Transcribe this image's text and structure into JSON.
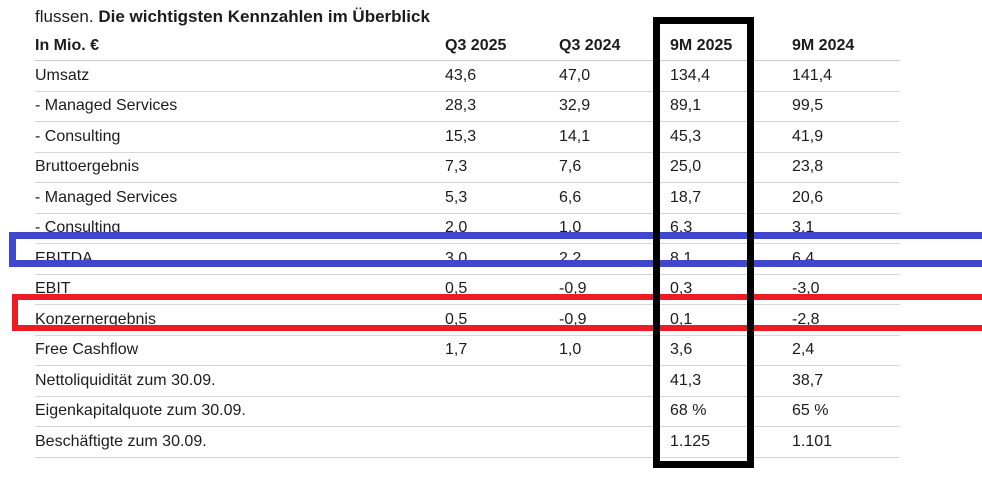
{
  "page": {
    "intro_text": "flussen.",
    "title": "Die wichtigsten Kennzahlen im Überblick"
  },
  "table": {
    "unit_label": "In Mio. €",
    "columns": [
      "Q3 2025",
      "Q3 2024",
      "9M 2025",
      "9M 2024"
    ],
    "rows": [
      {
        "label": "Umsatz",
        "values": [
          "43,6",
          "47,0",
          "134,4",
          "141,4"
        ],
        "highlight": ""
      },
      {
        "label": "- Managed Services",
        "values": [
          "28,3",
          "32,9",
          "89,1",
          "99,5"
        ],
        "highlight": ""
      },
      {
        "label": "- Consulting",
        "values": [
          "15,3",
          "14,1",
          "45,3",
          "41,9"
        ],
        "highlight": ""
      },
      {
        "label": "Bruttoergebnis",
        "values": [
          "7,3",
          "7,6",
          "25,0",
          "23,8"
        ],
        "highlight": ""
      },
      {
        "label": "- Managed Services",
        "values": [
          "5,3",
          "6,6",
          "18,7",
          "20,6"
        ],
        "highlight": ""
      },
      {
        "label": "- Consulting",
        "values": [
          "2,0",
          "1,0",
          "6,3",
          "3,1"
        ],
        "highlight": ""
      },
      {
        "label": "EBITDA",
        "values": [
          "3,0",
          "2,2",
          "8,1",
          "6,4"
        ],
        "highlight": "blue"
      },
      {
        "label": "EBIT",
        "values": [
          "0,5",
          "-0,9",
          "0,3",
          "-3,0"
        ],
        "highlight": ""
      },
      {
        "label": "Konzernergebnis",
        "values": [
          "0,5",
          "-0,9",
          "0,1",
          "-2,8"
        ],
        "highlight": "red"
      },
      {
        "label": "Free Cashflow",
        "values": [
          "1,7",
          "1,0",
          "3,6",
          "2,4"
        ],
        "highlight": ""
      },
      {
        "label": "Nettoliquidität zum 30.09.",
        "values": [
          "",
          "",
          "41,3",
          "38,7"
        ],
        "highlight": ""
      },
      {
        "label": "Eigenkapitalquote zum 30.09.",
        "values": [
          "",
          "",
          "68 %",
          "65 %"
        ],
        "highlight": ""
      },
      {
        "label": "Beschäftigte zum 30.09.",
        "values": [
          "",
          "",
          "1.125",
          "1.101"
        ],
        "highlight": ""
      }
    ]
  },
  "annotations": {
    "highlighted_column": "9M 2025",
    "highlighted_rows": [
      "EBITDA",
      "Konzernergebnis"
    ],
    "column_box_color": "#000000",
    "ebitda_box_color": "#3f48cc",
    "konzernergebnis_box_color": "#ed1c24"
  }
}
